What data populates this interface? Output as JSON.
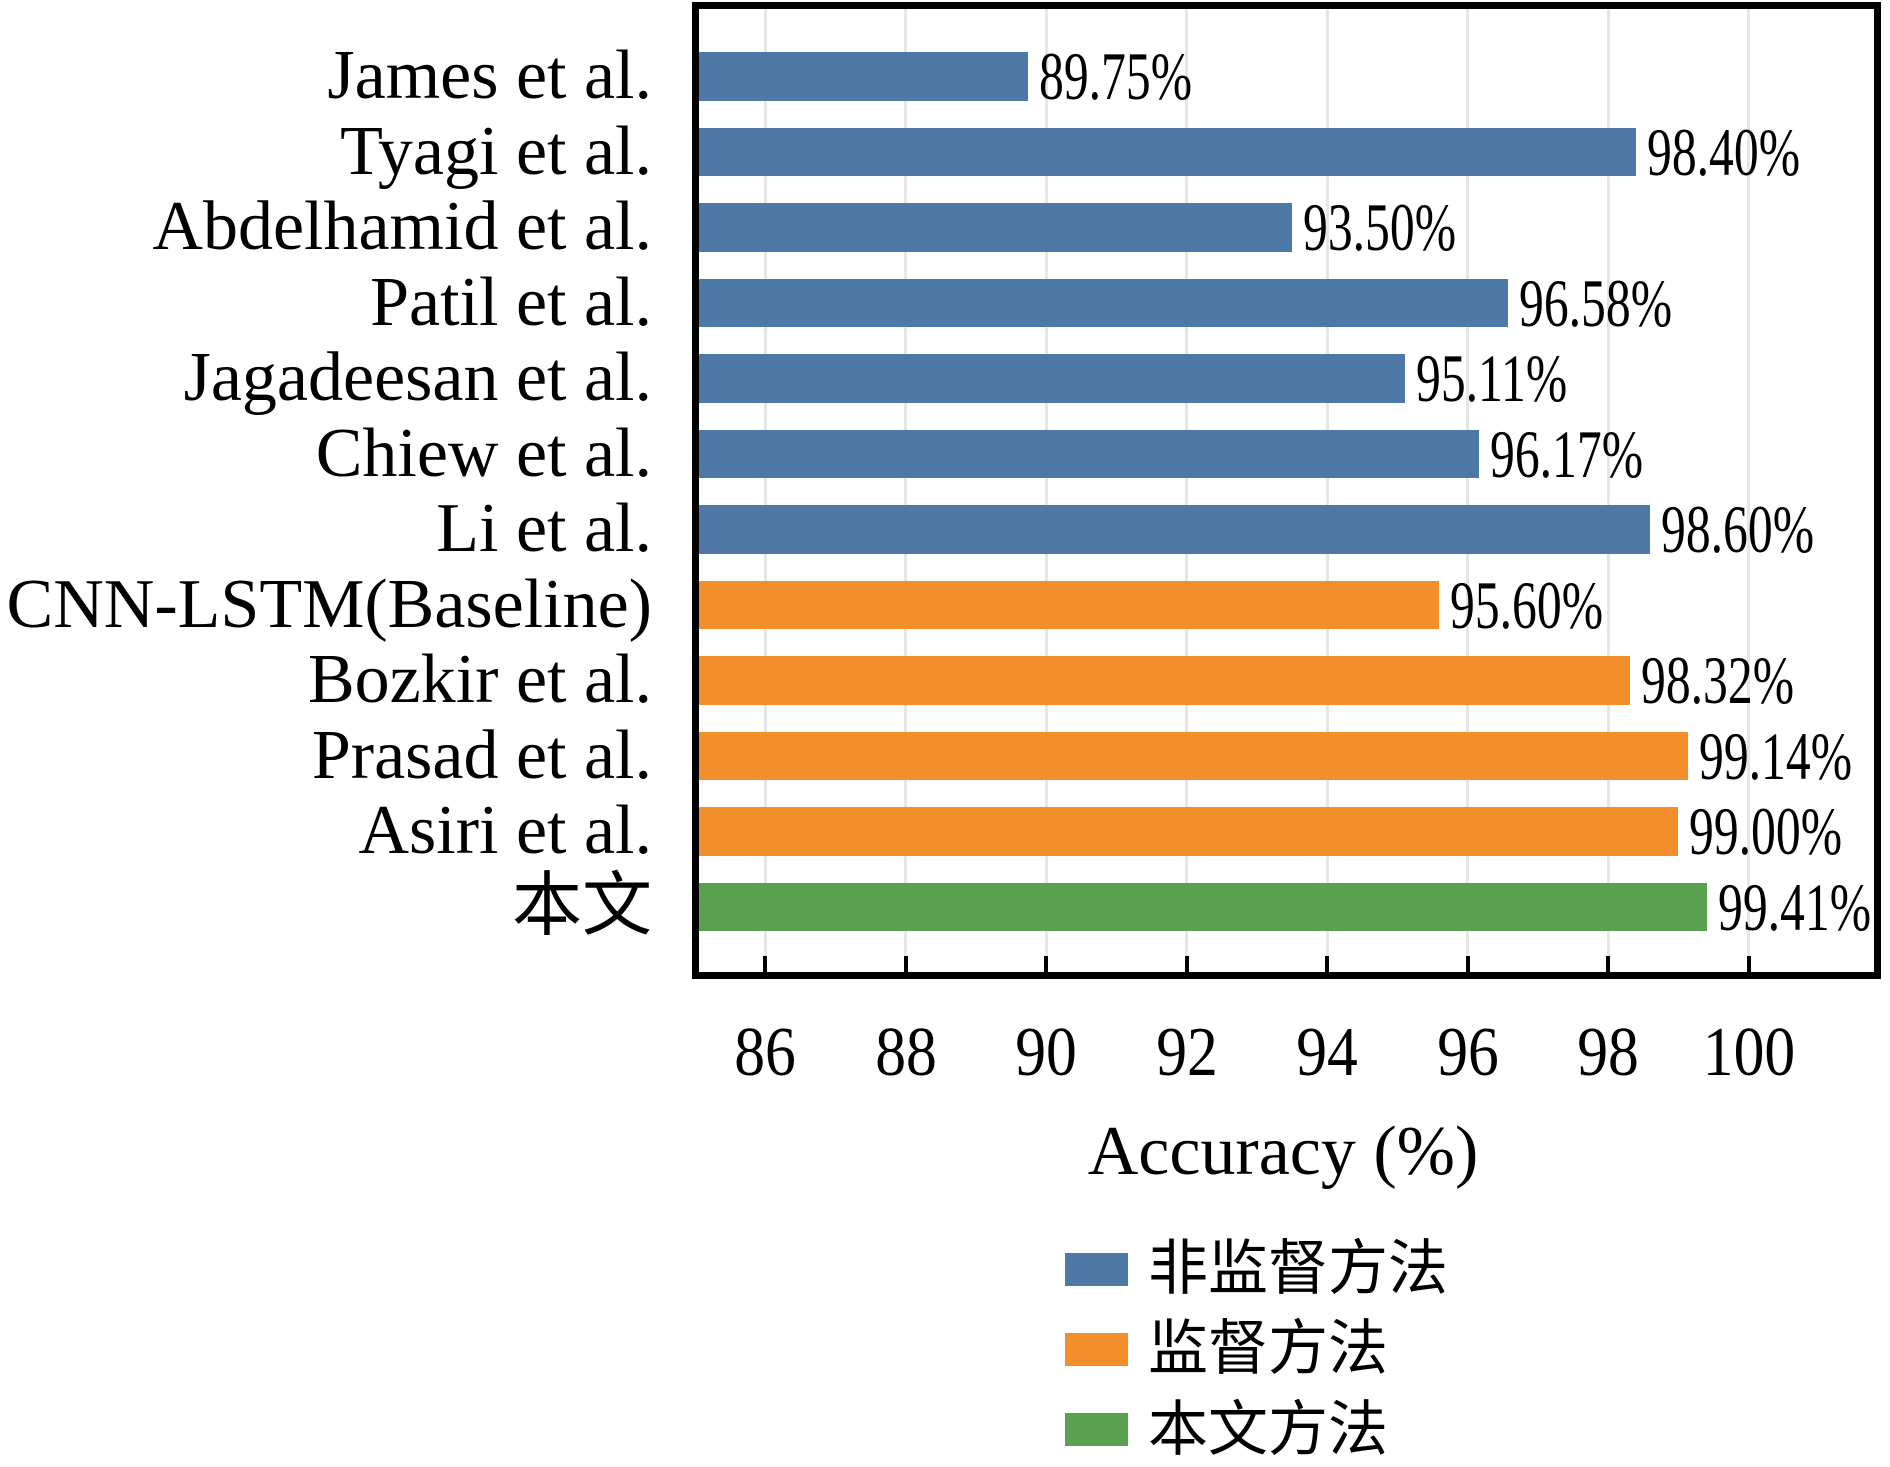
{
  "chart_data": {
    "type": "bar",
    "orientation": "horizontal",
    "title": "",
    "xlabel": "Accuracy (%)",
    "ylabel": "",
    "xlim": [
      85,
      101.8
    ],
    "xticks": [
      86,
      88,
      90,
      92,
      94,
      96,
      98,
      100
    ],
    "grid": "vertical-light-gray",
    "legend_position": "below-chart",
    "categories": [
      "James et al.",
      "Tyagi et al.",
      "Abdelhamid et al.",
      "Patil et al.",
      "Jagadeesan et al.",
      "Chiew et al.",
      "Li et al.",
      "CNN-LSTM(Baseline)",
      "Bozkir et al.",
      "Prasad et al.",
      "Asiri et al.",
      "本文"
    ],
    "values": [
      89.75,
      98.4,
      93.5,
      96.58,
      95.11,
      96.17,
      98.6,
      95.6,
      98.32,
      99.14,
      99.0,
      99.41
    ],
    "bars": [
      {
        "label": "James et al.",
        "value": 89.75,
        "display": "89.75%",
        "group": "unsupervised"
      },
      {
        "label": "Tyagi et al.",
        "value": 98.4,
        "display": "98.40%",
        "group": "unsupervised"
      },
      {
        "label": "Abdelhamid et al.",
        "value": 93.5,
        "display": "93.50%",
        "group": "unsupervised"
      },
      {
        "label": "Patil et al.",
        "value": 96.58,
        "display": "96.58%",
        "group": "unsupervised"
      },
      {
        "label": "Jagadeesan et al.",
        "value": 95.11,
        "display": "95.11%",
        "group": "unsupervised"
      },
      {
        "label": "Chiew et al.",
        "value": 96.17,
        "display": "96.17%",
        "group": "unsupervised"
      },
      {
        "label": "Li et al.",
        "value": 98.6,
        "display": "98.60%",
        "group": "unsupervised"
      },
      {
        "label": "CNN-LSTM(Baseline)",
        "value": 95.6,
        "display": "95.60%",
        "group": "supervised"
      },
      {
        "label": "Bozkir et al.",
        "value": 98.32,
        "display": "98.32%",
        "group": "supervised"
      },
      {
        "label": "Prasad et al.",
        "value": 99.14,
        "display": "99.14%",
        "group": "supervised"
      },
      {
        "label": "Asiri et al.",
        "value": 99.0,
        "display": "99.00%",
        "group": "supervised"
      },
      {
        "label": "本文",
        "value": 99.41,
        "display": "99.41%",
        "group": "proposed"
      }
    ],
    "legend": [
      {
        "label": "非监督方法",
        "group": "unsupervised",
        "color": "#4E79A7"
      },
      {
        "label": "监督方法",
        "group": "supervised",
        "color": "#F28E2B"
      },
      {
        "label": "本文方法",
        "group": "proposed",
        "color": "#59A14F"
      }
    ],
    "colors": {
      "unsupervised": "#4E79A7",
      "supervised": "#F28E2B",
      "proposed": "#59A14F",
      "grid": "#E6E6E6",
      "frame": "#000000",
      "text": "#000000",
      "background": "#FFFFFF"
    }
  }
}
